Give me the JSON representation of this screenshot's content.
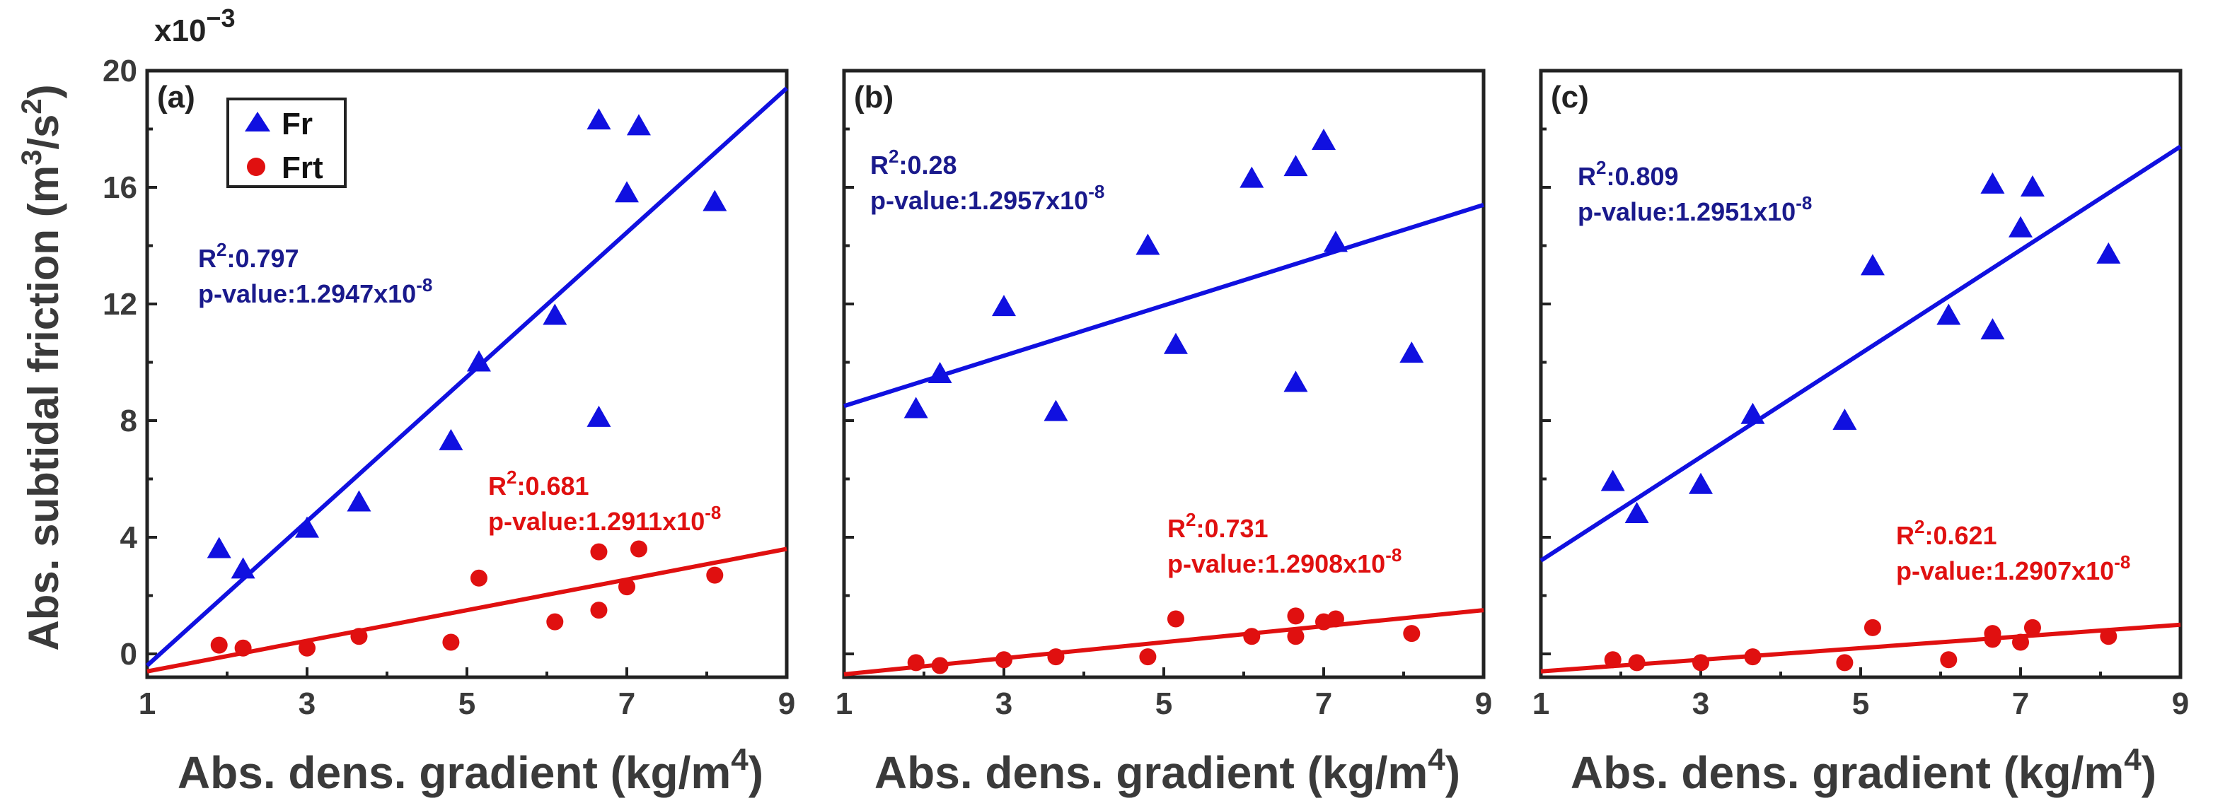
{
  "figure": {
    "y_axis_label": "Abs. subtidal friction (m",
    "y_axis_label_sup": "3",
    "y_axis_label_mid": "/s",
    "y_axis_label_sup2": "2",
    "y_axis_label_end": ")",
    "y_scale_base": "x10",
    "y_scale_exp": "−3",
    "x_axis_label": "Abs. dens. gradient (kg/m",
    "x_axis_label_sup": "4",
    "x_axis_label_end": ")",
    "colors": {
      "Fr": "#1010e0",
      "Frt": "#e01010",
      "Fr_text": "#1a1a8c",
      "Frt_text": "#e01010"
    }
  },
  "legend": {
    "entries": [
      {
        "name": "Fr",
        "marker": "triangle",
        "color": "#1010e0"
      },
      {
        "name": "Frt",
        "marker": "circle",
        "color": "#e01010"
      }
    ]
  },
  "chart_data": [
    {
      "type": "scatter",
      "panel": "(a)",
      "xlim": [
        1,
        9
      ],
      "ylim": [
        -0.8,
        20
      ],
      "xticks": [
        1,
        3,
        5,
        7,
        9
      ],
      "yticks": [
        0,
        4,
        8,
        12,
        16,
        20
      ],
      "series": [
        {
          "name": "Fr",
          "marker": "triangle",
          "x": [
            1.9,
            2.2,
            3.0,
            3.65,
            4.8,
            5.15,
            6.1,
            6.65,
            6.65,
            7.0,
            7.15,
            8.1
          ],
          "y": [
            3.6,
            2.9,
            4.3,
            5.2,
            7.3,
            10.0,
            11.6,
            8.1,
            18.3,
            15.8,
            18.1,
            15.5
          ],
          "fit": {
            "x": [
              1,
              9
            ],
            "y": [
              -0.4,
              19.4
            ]
          },
          "annotation": {
            "r2_label": "R",
            "r2_sup": "2",
            "r2_value": ":0.797",
            "p_label": "p-value:1.2947x10",
            "p_exp": "-8"
          }
        },
        {
          "name": "Frt",
          "marker": "circle",
          "x": [
            1.9,
            2.2,
            3.0,
            3.65,
            4.8,
            5.15,
            6.1,
            6.65,
            6.65,
            7.0,
            7.15,
            8.1
          ],
          "y": [
            0.3,
            0.2,
            0.2,
            0.6,
            0.4,
            2.6,
            1.1,
            1.5,
            3.5,
            2.3,
            3.6,
            2.7
          ],
          "fit": {
            "x": [
              1,
              9
            ],
            "y": [
              -0.6,
              3.6
            ]
          },
          "annotation": {
            "r2_label": "R",
            "r2_sup": "2",
            "r2_value": ":0.681",
            "p_label": "p-value:1.2911x10",
            "p_exp": "-8"
          }
        }
      ]
    },
    {
      "type": "scatter",
      "panel": "(b)",
      "xlim": [
        1,
        9
      ],
      "ylim": [
        -0.8,
        20
      ],
      "xticks": [
        1,
        3,
        5,
        7,
        9
      ],
      "yticks": [
        0,
        4,
        8,
        12,
        16,
        20
      ],
      "series": [
        {
          "name": "Fr",
          "marker": "triangle",
          "x": [
            1.9,
            2.2,
            3.0,
            3.65,
            4.8,
            5.15,
            6.1,
            6.65,
            6.65,
            7.0,
            7.15,
            8.1
          ],
          "y": [
            8.4,
            9.6,
            11.9,
            8.3,
            14.0,
            10.6,
            16.3,
            9.3,
            16.7,
            17.6,
            14.1,
            10.3
          ],
          "fit": {
            "x": [
              1,
              9
            ],
            "y": [
              8.5,
              15.4
            ]
          },
          "annotation": {
            "r2_label": "R",
            "r2_sup": "2",
            "r2_value": ":0.28",
            "p_label": "p-value:1.2957x10",
            "p_exp": "-8"
          }
        },
        {
          "name": "Frt",
          "marker": "circle",
          "x": [
            1.9,
            2.2,
            3.0,
            3.65,
            4.8,
            5.15,
            6.1,
            6.65,
            6.65,
            7.0,
            7.15,
            8.1
          ],
          "y": [
            -0.3,
            -0.4,
            -0.2,
            -0.1,
            -0.1,
            1.2,
            0.6,
            0.6,
            1.3,
            1.1,
            1.2,
            0.7
          ],
          "fit": {
            "x": [
              1,
              9
            ],
            "y": [
              -0.7,
              1.5
            ]
          },
          "annotation": {
            "r2_label": "R",
            "r2_sup": "2",
            "r2_value": ":0.731",
            "p_label": "p-value:1.2908x10",
            "p_exp": "-8"
          }
        }
      ]
    },
    {
      "type": "scatter",
      "panel": "(c)",
      "xlim": [
        1,
        9
      ],
      "ylim": [
        -0.8,
        20
      ],
      "xticks": [
        1,
        3,
        5,
        7,
        9
      ],
      "yticks": [
        0,
        4,
        8,
        12,
        16,
        20
      ],
      "series": [
        {
          "name": "Fr",
          "marker": "triangle",
          "x": [
            1.9,
            2.2,
            3.0,
            3.65,
            4.8,
            5.15,
            6.1,
            6.65,
            6.65,
            7.0,
            7.15,
            8.1
          ],
          "y": [
            5.9,
            4.8,
            5.8,
            8.2,
            8.0,
            13.3,
            11.6,
            11.1,
            16.1,
            14.6,
            16.0,
            13.7
          ],
          "fit": {
            "x": [
              1,
              9
            ],
            "y": [
              3.2,
              17.4
            ]
          },
          "annotation": {
            "r2_label": "R",
            "r2_sup": "2",
            "r2_value": ":0.809",
            "p_label": "p-value:1.2951x10",
            "p_exp": "-8"
          }
        },
        {
          "name": "Frt",
          "marker": "circle",
          "x": [
            1.9,
            2.2,
            3.0,
            3.65,
            4.8,
            5.15,
            6.1,
            6.65,
            6.65,
            7.0,
            7.15,
            8.1
          ],
          "y": [
            -0.2,
            -0.3,
            -0.3,
            -0.1,
            -0.3,
            0.9,
            -0.2,
            0.5,
            0.7,
            0.4,
            0.9,
            0.6
          ],
          "fit": {
            "x": [
              1,
              9
            ],
            "y": [
              -0.6,
              1.0
            ]
          },
          "annotation": {
            "r2_label": "R",
            "r2_sup": "2",
            "r2_value": ":0.621",
            "p_label": "p-value:1.2907x10",
            "p_exp": "-8"
          }
        }
      ]
    }
  ]
}
